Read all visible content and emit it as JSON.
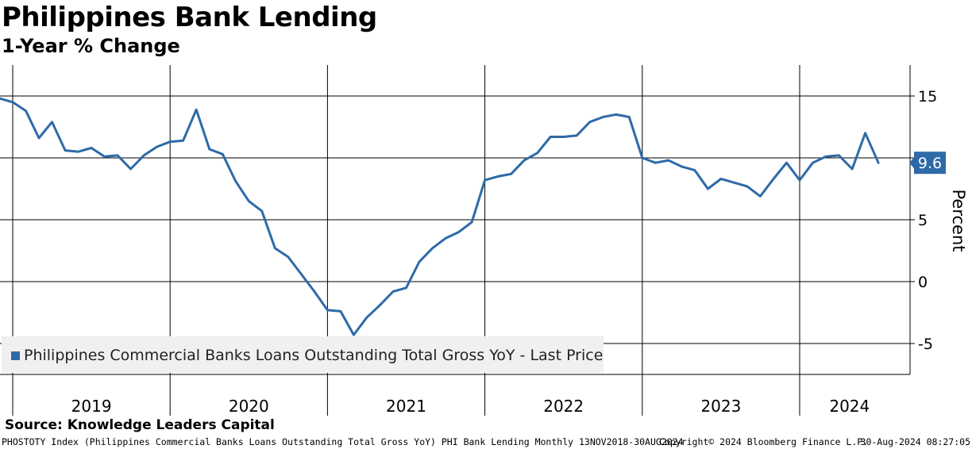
{
  "header": {
    "title": "Philippines Bank Lending",
    "subtitle": "1-Year % Change"
  },
  "legend": {
    "label": "Philippines Commercial Banks Loans Outstanding Total Gross YoY - Last Price"
  },
  "source": "Source: Knowledge Leaders Capital",
  "footer": {
    "description": "PHOSTOTY Index (Philippines Commercial Banks Loans Outstanding Total Gross YoY) PHI Bank Lending  Monthly 13NOV2018-30AUG2024",
    "copyright": "Copyright© 2024 Bloomberg Finance L.P.",
    "timestamp": "30-Aug-2024 08:27:05"
  },
  "colors": {
    "series": "#2e6aa8",
    "grid": "#000000",
    "label_bg": "#2e6aa8",
    "legend_bg": "#f0f0f0"
  },
  "chart_data": {
    "type": "line",
    "title": "Philippines Bank Lending",
    "subtitle": "1-Year % Change",
    "xlabel": "",
    "ylabel": "Percent",
    "ylim": [
      -7.5,
      17.5
    ],
    "yticks": [
      15,
      10,
      5,
      0,
      -5
    ],
    "ytick_labels": [
      "15",
      "10",
      "5",
      "0",
      "-5"
    ],
    "year_labels": [
      "2019",
      "2020",
      "2021",
      "2022",
      "2023",
      "2024"
    ],
    "x_start": "2018-11",
    "x_end": "2024-08",
    "grid": true,
    "legend_position": "bottom-left",
    "last_value_label": "9.6",
    "series": [
      {
        "name": "Philippines Commercial Banks Loans Outstanding Total Gross YoY - Last Price",
        "dates": [
          "2018-11",
          "2018-12",
          "2019-01",
          "2019-02",
          "2019-03",
          "2019-04",
          "2019-05",
          "2019-06",
          "2019-07",
          "2019-08",
          "2019-09",
          "2019-10",
          "2019-11",
          "2019-12",
          "2020-01",
          "2020-02",
          "2020-03",
          "2020-04",
          "2020-05",
          "2020-06",
          "2020-07",
          "2020-08",
          "2020-09",
          "2020-10",
          "2020-11",
          "2020-12",
          "2021-01",
          "2021-02",
          "2021-03",
          "2021-04",
          "2021-05",
          "2021-06",
          "2021-07",
          "2021-08",
          "2021-09",
          "2021-10",
          "2021-11",
          "2021-12",
          "2022-01",
          "2022-02",
          "2022-03",
          "2022-04",
          "2022-05",
          "2022-06",
          "2022-07",
          "2022-08",
          "2022-09",
          "2022-10",
          "2022-11",
          "2022-12",
          "2023-01",
          "2023-02",
          "2023-03",
          "2023-04",
          "2023-05",
          "2023-06",
          "2023-07",
          "2023-08",
          "2023-09",
          "2023-10",
          "2023-11",
          "2023-12",
          "2024-01",
          "2024-02",
          "2024-03",
          "2024-04",
          "2024-05",
          "2024-06",
          "2024-07"
        ],
        "values": [
          15.4,
          14.8,
          14.5,
          13.8,
          11.6,
          12.9,
          10.6,
          10.5,
          10.8,
          10.1,
          10.2,
          9.1,
          10.2,
          10.9,
          11.3,
          11.4,
          13.9,
          10.7,
          10.3,
          8.1,
          6.5,
          5.7,
          2.7,
          2.0,
          0.6,
          -0.8,
          -2.3,
          -2.4,
          -4.3,
          -2.9,
          -1.9,
          -0.8,
          -0.5,
          1.6,
          2.7,
          3.5,
          4.0,
          4.8,
          8.2,
          8.5,
          8.7,
          9.8,
          10.4,
          11.7,
          11.7,
          11.8,
          12.9,
          13.3,
          13.5,
          13.3,
          10.0,
          9.6,
          9.8,
          9.3,
          9.0,
          7.5,
          8.3,
          8.0,
          7.7,
          6.9,
          8.3,
          9.6,
          8.2,
          9.6,
          10.1,
          10.2,
          9.1,
          12.0,
          9.6
        ]
      }
    ]
  }
}
